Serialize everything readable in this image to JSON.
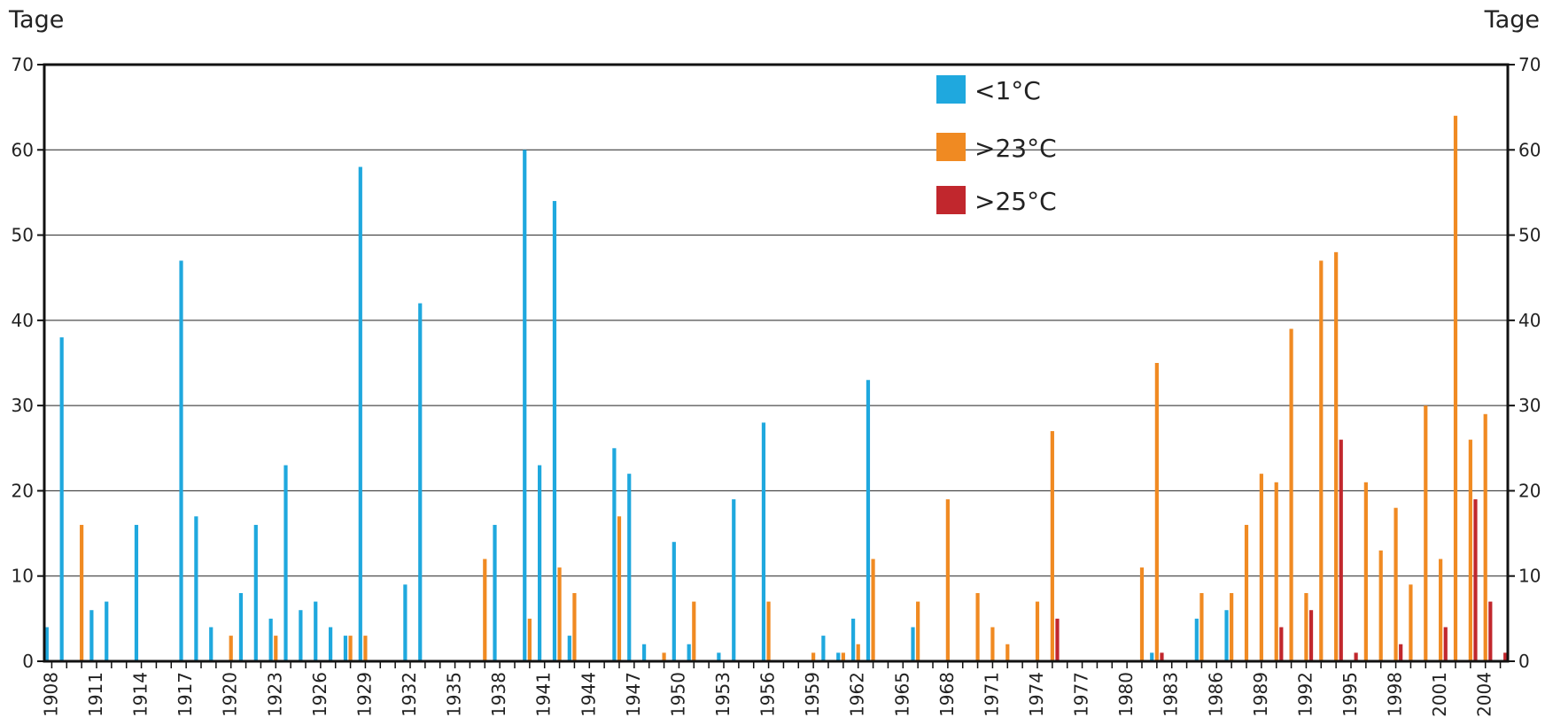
{
  "chart_data": {
    "type": "bar",
    "ylabel_left": "Tage",
    "ylabel_right": "Tage",
    "ylim": [
      0,
      70
    ],
    "yticks": [
      0,
      10,
      20,
      30,
      40,
      50,
      60,
      70
    ],
    "grid": true,
    "legend_position": "top-center",
    "x_start": 1908,
    "x_end": 2005,
    "x_tick_labels": [
      "1908",
      "1911",
      "1914",
      "1917",
      "1920",
      "1923",
      "1926",
      "1929",
      "1932",
      "1935",
      "1938",
      "1941",
      "1944",
      "1947",
      "1950",
      "1953",
      "1956",
      "1959",
      "1962",
      "1965",
      "1968",
      "1971",
      "1974",
      "1977",
      "1980",
      "1983",
      "1986",
      "1989",
      "1992",
      "1995",
      "1998",
      "2001",
      "2004"
    ],
    "series": [
      {
        "name": "<1°C",
        "color": "#1fa8de",
        "points": [
          {
            "x": 1908,
            "y": 4
          },
          {
            "x": 1909,
            "y": 38
          },
          {
            "x": 1911,
            "y": 6
          },
          {
            "x": 1912,
            "y": 7
          },
          {
            "x": 1914,
            "y": 16
          },
          {
            "x": 1917,
            "y": 47
          },
          {
            "x": 1918,
            "y": 17
          },
          {
            "x": 1919,
            "y": 4
          },
          {
            "x": 1921,
            "y": 8
          },
          {
            "x": 1922,
            "y": 16
          },
          {
            "x": 1923,
            "y": 5
          },
          {
            "x": 1924,
            "y": 23
          },
          {
            "x": 1925,
            "y": 6
          },
          {
            "x": 1926,
            "y": 7
          },
          {
            "x": 1927,
            "y": 4
          },
          {
            "x": 1928,
            "y": 3
          },
          {
            "x": 1929,
            "y": 58
          },
          {
            "x": 1932,
            "y": 9
          },
          {
            "x": 1933,
            "y": 42
          },
          {
            "x": 1938,
            "y": 16
          },
          {
            "x": 1940,
            "y": 60
          },
          {
            "x": 1941,
            "y": 23
          },
          {
            "x": 1942,
            "y": 54
          },
          {
            "x": 1943,
            "y": 3
          },
          {
            "x": 1946,
            "y": 25
          },
          {
            "x": 1947,
            "y": 22
          },
          {
            "x": 1948,
            "y": 2
          },
          {
            "x": 1950,
            "y": 14
          },
          {
            "x": 1951,
            "y": 2
          },
          {
            "x": 1953,
            "y": 1
          },
          {
            "x": 1954,
            "y": 19
          },
          {
            "x": 1956,
            "y": 28
          },
          {
            "x": 1960,
            "y": 3
          },
          {
            "x": 1961,
            "y": 1
          },
          {
            "x": 1962,
            "y": 5
          },
          {
            "x": 1963,
            "y": 33
          },
          {
            "x": 1966,
            "y": 4
          },
          {
            "x": 1982,
            "y": 1
          },
          {
            "x": 1985,
            "y": 5
          },
          {
            "x": 1987,
            "y": 6
          }
        ]
      },
      {
        "name": ">23°C",
        "color": "#f08a22",
        "points": [
          {
            "x": 1910,
            "y": 16
          },
          {
            "x": 1920,
            "y": 3
          },
          {
            "x": 1923,
            "y": 3
          },
          {
            "x": 1928,
            "y": 3
          },
          {
            "x": 1929,
            "y": 3
          },
          {
            "x": 1937,
            "y": 12
          },
          {
            "x": 1940,
            "y": 5
          },
          {
            "x": 1942,
            "y": 11
          },
          {
            "x": 1943,
            "y": 8
          },
          {
            "x": 1946,
            "y": 17
          },
          {
            "x": 1949,
            "y": 1
          },
          {
            "x": 1951,
            "y": 7
          },
          {
            "x": 1956,
            "y": 7
          },
          {
            "x": 1959,
            "y": 1
          },
          {
            "x": 1961,
            "y": 1
          },
          {
            "x": 1962,
            "y": 2
          },
          {
            "x": 1963,
            "y": 12
          },
          {
            "x": 1966,
            "y": 7
          },
          {
            "x": 1968,
            "y": 19
          },
          {
            "x": 1970,
            "y": 8
          },
          {
            "x": 1971,
            "y": 4
          },
          {
            "x": 1972,
            "y": 2
          },
          {
            "x": 1974,
            "y": 7
          },
          {
            "x": 1975,
            "y": 27
          },
          {
            "x": 1981,
            "y": 11
          },
          {
            "x": 1982,
            "y": 35
          },
          {
            "x": 1985,
            "y": 8
          },
          {
            "x": 1987,
            "y": 8
          },
          {
            "x": 1988,
            "y": 16
          },
          {
            "x": 1989,
            "y": 22
          },
          {
            "x": 1990,
            "y": 21
          },
          {
            "x": 1991,
            "y": 39
          },
          {
            "x": 1992,
            "y": 8
          },
          {
            "x": 1993,
            "y": 47
          },
          {
            "x": 1994,
            "y": 48
          },
          {
            "x": 1996,
            "y": 21
          },
          {
            "x": 1997,
            "y": 13
          },
          {
            "x": 1998,
            "y": 18
          },
          {
            "x": 1999,
            "y": 9
          },
          {
            "x": 2000,
            "y": 30
          },
          {
            "x": 2001,
            "y": 12
          },
          {
            "x": 2002,
            "y": 64
          },
          {
            "x": 2003,
            "y": 26
          },
          {
            "x": 2004,
            "y": 29
          }
        ]
      },
      {
        "name": ">25°C",
        "color": "#c1272d",
        "points": [
          {
            "x": 1975,
            "y": 5
          },
          {
            "x": 1982,
            "y": 1
          },
          {
            "x": 1990,
            "y": 4
          },
          {
            "x": 1992,
            "y": 6
          },
          {
            "x": 1994,
            "y": 26
          },
          {
            "x": 1995,
            "y": 1
          },
          {
            "x": 1998,
            "y": 2
          },
          {
            "x": 2001,
            "y": 4
          },
          {
            "x": 2003,
            "y": 19
          },
          {
            "x": 2004,
            "y": 7
          },
          {
            "x": 2005,
            "y": 1
          }
        ]
      }
    ]
  }
}
